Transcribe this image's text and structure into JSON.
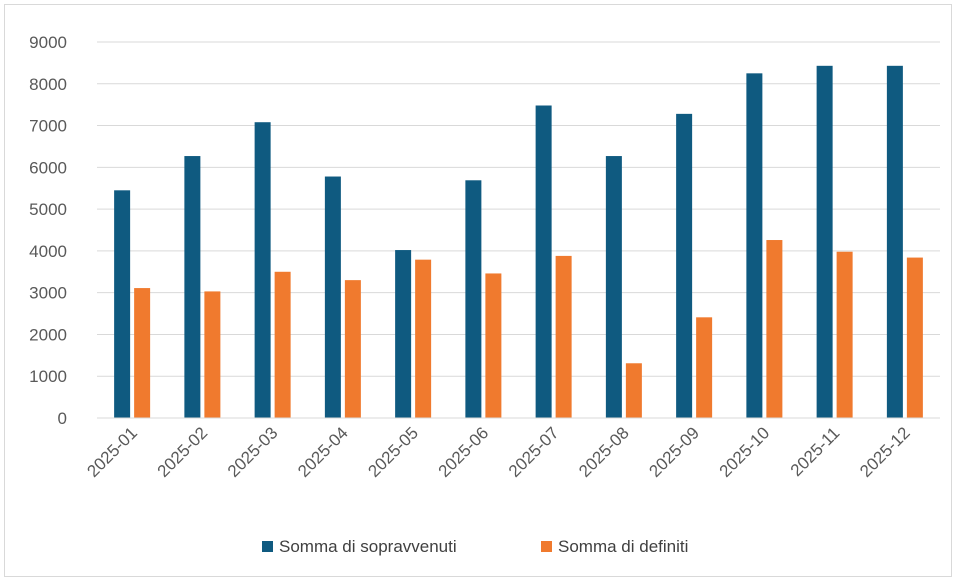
{
  "chart_data": {
    "type": "bar",
    "categories": [
      "2025-01",
      "2025-02",
      "2025-03",
      "2025-04",
      "2025-05",
      "2025-06",
      "2025-07",
      "2025-08",
      "2025-09",
      "2025-10",
      "2025-11",
      "2025-12"
    ],
    "series": [
      {
        "name": "Somma di sopravvenuti",
        "color": "#0f5a80",
        "values": [
          5450,
          6270,
          7080,
          5780,
          4020,
          5690,
          7480,
          6270,
          7280,
          8250,
          8430,
          8430
        ]
      },
      {
        "name": "Somma di definiti",
        "color": "#f07a2e",
        "values": [
          3110,
          3030,
          3500,
          3300,
          3790,
          3460,
          3880,
          1310,
          2410,
          4260,
          3980,
          3840
        ]
      }
    ],
    "yticks": [
      0,
      1000,
      2000,
      3000,
      4000,
      5000,
      6000,
      7000,
      8000,
      9000
    ],
    "ylim": [
      0,
      9000
    ],
    "grid": true,
    "legend_position": "bottom"
  }
}
